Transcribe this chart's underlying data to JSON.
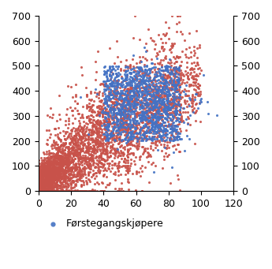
{
  "xlim": [
    0,
    120
  ],
  "ylim": [
    0,
    700
  ],
  "xticks": [
    0,
    20,
    40,
    60,
    80,
    100,
    120
  ],
  "yticks": [
    0,
    100,
    200,
    300,
    400,
    500,
    600,
    700
  ],
  "red_color": "#C8524A",
  "blue_color": "#4472C4",
  "legend_label": "Førstegangskjøpere",
  "marker_size": 5,
  "n_red": 4000,
  "n_blue": 1400,
  "figsize": [
    3.45,
    3.41
  ],
  "dpi": 100,
  "tick_fontsize": 9,
  "legend_fontsize": 9,
  "seed": 7
}
